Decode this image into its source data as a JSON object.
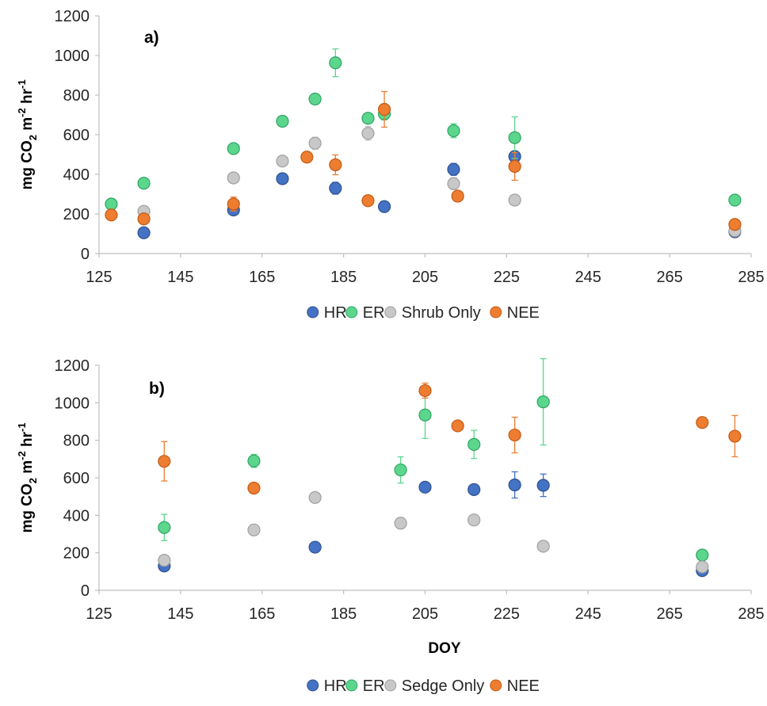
{
  "chart_data": [
    {
      "type": "scatter",
      "panel_label": "a)",
      "ylabel": "mg CO2 m-2 hr-1",
      "ylabel_parts": {
        "pre": "mg CO",
        "sub": "2",
        "mid": " m",
        "sup1": "-2",
        "hr": " hr",
        "sup2": "-1"
      },
      "xlabel": "",
      "xlim": [
        125,
        285
      ],
      "ylim": [
        0,
        1200
      ],
      "xticks": [
        125,
        145,
        165,
        185,
        205,
        225,
        245,
        265,
        285
      ],
      "yticks": [
        0,
        200,
        400,
        600,
        800,
        1000,
        1200
      ],
      "legend_position": "bottom",
      "series": [
        {
          "name": "HR",
          "color": "#4472C4",
          "stroke": "#2F528F",
          "points": [
            [
              136,
              105,
              0
            ],
            [
              158,
              220,
              0
            ],
            [
              170,
              378,
              0
            ],
            [
              183,
              330,
              30
            ],
            [
              195,
              237,
              0
            ],
            [
              212,
              425,
              30
            ],
            [
              227,
              490,
              0
            ],
            [
              281,
              110,
              0
            ]
          ]
        },
        {
          "name": "ER",
          "color": "#5CD68D",
          "stroke": "#2EA564",
          "points": [
            [
              128,
              250,
              15
            ],
            [
              136,
              355,
              25
            ],
            [
              158,
              530,
              0
            ],
            [
              170,
              668,
              20
            ],
            [
              178,
              780,
              25
            ],
            [
              183,
              963,
              70
            ],
            [
              191,
              683,
              20
            ],
            [
              195,
              705,
              30
            ],
            [
              212,
              620,
              35
            ],
            [
              227,
              585,
              105
            ],
            [
              281,
              270,
              20
            ]
          ]
        },
        {
          "name": "Shrub Only",
          "color": "#C8C8C8",
          "stroke": "#A0A0A0",
          "points": [
            [
              136,
              213,
              25
            ],
            [
              158,
              382,
              0
            ],
            [
              170,
              467,
              0
            ],
            [
              178,
              557,
              30
            ],
            [
              191,
              607,
              35
            ],
            [
              212,
              353,
              30
            ],
            [
              227,
              270,
              0
            ],
            [
              281,
              115,
              0
            ]
          ]
        },
        {
          "name": "NEE",
          "color": "#ED7D31",
          "stroke": "#C55A11",
          "points": [
            [
              128,
              195,
              0
            ],
            [
              136,
              175,
              25
            ],
            [
              158,
              250,
              35
            ],
            [
              176,
              487,
              0
            ],
            [
              183,
              448,
              50
            ],
            [
              191,
              267,
              0
            ],
            [
              195,
              728,
              90
            ],
            [
              213,
              290,
              0
            ],
            [
              227,
              440,
              70
            ],
            [
              281,
              147,
              0
            ]
          ]
        }
      ]
    },
    {
      "type": "scatter",
      "panel_label": "b)",
      "ylabel": "mg CO2 m-2 hr-1",
      "ylabel_parts": {
        "pre": "mg CO",
        "sub": "2",
        "mid": " m",
        "sup1": "-2",
        "hr": " hr",
        "sup2": "-1"
      },
      "xlabel": "DOY",
      "xlim": [
        125,
        285
      ],
      "ylim": [
        0,
        1200
      ],
      "xticks": [
        125,
        145,
        165,
        185,
        205,
        225,
        245,
        265,
        285
      ],
      "yticks": [
        0,
        200,
        400,
        600,
        800,
        1000,
        1200
      ],
      "legend_position": "bottom",
      "series": [
        {
          "name": "HR",
          "color": "#4472C4",
          "stroke": "#2F528F",
          "points": [
            [
              141,
              130,
              0
            ],
            [
              178,
              230,
              0
            ],
            [
              205,
              550,
              0
            ],
            [
              217,
              537,
              0
            ],
            [
              227,
              562,
              70
            ],
            [
              234,
              560,
              60
            ],
            [
              273,
              105,
              0
            ]
          ]
        },
        {
          "name": "ER",
          "color": "#5CD68D",
          "stroke": "#2EA564",
          "points": [
            [
              141,
              335,
              70
            ],
            [
              163,
              690,
              35
            ],
            [
              199,
              642,
              70
            ],
            [
              205,
              935,
              125
            ],
            [
              217,
              778,
              75
            ],
            [
              234,
              1005,
              230
            ],
            [
              273,
              188,
              0
            ]
          ]
        },
        {
          "name": "Sedge Only",
          "color": "#C8C8C8",
          "stroke": "#A0A0A0",
          "points": [
            [
              141,
              160,
              0
            ],
            [
              163,
              322,
              30
            ],
            [
              178,
              495,
              0
            ],
            [
              199,
              358,
              30
            ],
            [
              217,
              375,
              0
            ],
            [
              234,
              235,
              0
            ],
            [
              273,
              125,
              0
            ]
          ]
        },
        {
          "name": "NEE",
          "color": "#ED7D31",
          "stroke": "#C55A11",
          "points": [
            [
              141,
              688,
              105
            ],
            [
              163,
              545,
              25
            ],
            [
              205,
              1065,
              40
            ],
            [
              213,
              877,
              0
            ],
            [
              227,
              828,
              95
            ],
            [
              273,
              895,
              0
            ],
            [
              281,
              822,
              110
            ]
          ]
        }
      ]
    }
  ]
}
